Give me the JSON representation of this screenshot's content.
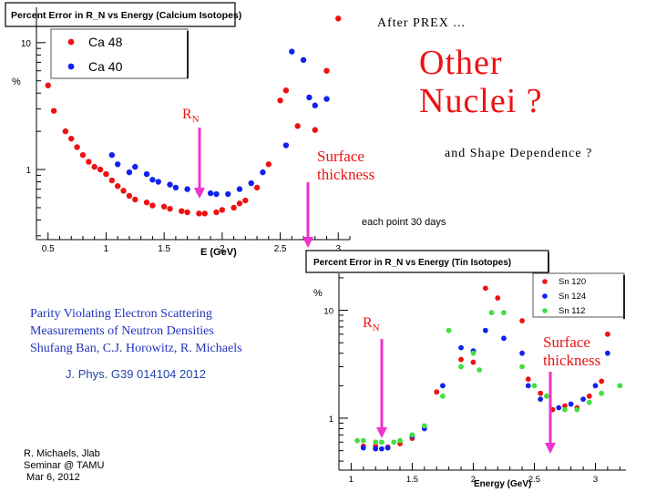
{
  "slide": {
    "after_prex": "After  PREX ...",
    "headline": "Other Nuclei  ?",
    "shape": "and  Shape  Dependence ?",
    "each_point": "each point 30 days",
    "paper_lines": [
      "Parity Violating Electron Scattering",
      "Measurements of Neutron Densities",
      "Shufang Ban,  C.J. Horowitz,  R. Michaels"
    ],
    "journal": "J. Phys. G39  014104  2012",
    "footer_lines": [
      "R. Michaels,  Jlab",
      "Seminar @ TAMU",
      " Mar 6, 2012"
    ],
    "annotations": {
      "rn_base": "R",
      "rn_sub": "N",
      "surface_lines": [
        "Surface",
        "thickness"
      ]
    },
    "colors": {
      "red": "#ee1111",
      "blue": "#1122ee",
      "green": "#44dd44",
      "magenta": "#ee33cc",
      "journal_blue": "#2244aa"
    }
  },
  "chart_data": [
    {
      "type": "scatter",
      "title": "Percent Error in R_N vs Energy (Calcium Isotopes)",
      "xlabel": "E  (GeV)",
      "ylabel": "%",
      "y_scale": "log",
      "xlim": [
        0.4,
        3.1
      ],
      "ylim": [
        0.28,
        19
      ],
      "x_ticks": [
        0.5,
        1,
        1.5,
        2,
        2.5,
        3
      ],
      "x_tick_labels": [
        "0.5",
        "1",
        "1.5",
        "2",
        "2.5",
        "3"
      ],
      "y_ticks": [
        1,
        10
      ],
      "y_tick_labels": [
        "1",
        "10"
      ],
      "legend_position": "top-left",
      "series": [
        {
          "name": "Ca 48",
          "color": "red",
          "points": [
            [
              0.5,
              4.6
            ],
            [
              0.55,
              2.9
            ],
            [
              0.65,
              2.0
            ],
            [
              0.7,
              1.75
            ],
            [
              0.75,
              1.5
            ],
            [
              0.8,
              1.3
            ],
            [
              0.85,
              1.15
            ],
            [
              0.9,
              1.05
            ],
            [
              0.95,
              1.0
            ],
            [
              1.0,
              0.92
            ],
            [
              1.05,
              0.82
            ],
            [
              1.1,
              0.74
            ],
            [
              1.15,
              0.68
            ],
            [
              1.2,
              0.62
            ],
            [
              1.25,
              0.58
            ],
            [
              1.35,
              0.55
            ],
            [
              1.4,
              0.52
            ],
            [
              1.5,
              0.51
            ],
            [
              1.55,
              0.49
            ],
            [
              1.65,
              0.47
            ],
            [
              1.7,
              0.46
            ],
            [
              1.8,
              0.45
            ],
            [
              1.85,
              0.45
            ],
            [
              1.95,
              0.46
            ],
            [
              2.0,
              0.48
            ],
            [
              2.1,
              0.5
            ],
            [
              2.15,
              0.54
            ],
            [
              2.2,
              0.57
            ],
            [
              2.3,
              0.72
            ],
            [
              2.4,
              1.1
            ],
            [
              2.5,
              3.5
            ],
            [
              2.55,
              4.2
            ],
            [
              2.65,
              2.2
            ],
            [
              2.8,
              2.05
            ],
            [
              2.9,
              6.0
            ],
            [
              3.0,
              15.5
            ]
          ]
        },
        {
          "name": "Ca 40",
          "color": "blue",
          "points": [
            [
              1.05,
              1.3
            ],
            [
              1.1,
              1.1
            ],
            [
              1.2,
              0.95
            ],
            [
              1.25,
              1.05
            ],
            [
              1.35,
              0.92
            ],
            [
              1.4,
              0.83
            ],
            [
              1.45,
              0.8
            ],
            [
              1.55,
              0.76
            ],
            [
              1.6,
              0.72
            ],
            [
              1.7,
              0.7
            ],
            [
              1.8,
              0.67
            ],
            [
              1.9,
              0.65
            ],
            [
              1.95,
              0.64
            ],
            [
              2.05,
              0.64
            ],
            [
              2.15,
              0.7
            ],
            [
              2.25,
              0.78
            ],
            [
              2.35,
              0.95
            ],
            [
              2.55,
              1.55
            ],
            [
              2.6,
              8.5
            ],
            [
              2.7,
              7.3
            ],
            [
              2.75,
              3.7
            ],
            [
              2.8,
              3.2
            ],
            [
              2.9,
              3.6
            ]
          ]
        }
      ]
    },
    {
      "type": "scatter",
      "title": "Percent Error in R_N vs Energy (Tin Isotopes)",
      "xlabel": "Energy  (GeV)",
      "ylabel": "%",
      "y_scale": "log",
      "xlim": [
        0.9,
        3.25
      ],
      "ylim": [
        0.33,
        22
      ],
      "x_ticks": [
        1,
        1.5,
        2,
        2.5,
        3
      ],
      "x_tick_labels": [
        "1",
        "1.5",
        "2",
        "2.5",
        "3"
      ],
      "y_ticks": [
        1,
        10
      ],
      "y_tick_labels": [
        "1",
        "10"
      ],
      "legend_position": "top-right",
      "series": [
        {
          "name": "Sn 120",
          "color": "red",
          "points": [
            [
              1.1,
              0.55
            ],
            [
              1.2,
              0.55
            ],
            [
              1.3,
              0.54
            ],
            [
              1.4,
              0.58
            ],
            [
              1.5,
              0.65
            ],
            [
              1.7,
              1.75
            ],
            [
              1.9,
              3.5
            ],
            [
              2.0,
              3.3
            ],
            [
              2.1,
              16
            ],
            [
              2.2,
              13
            ],
            [
              2.4,
              8.0
            ],
            [
              2.45,
              2.3
            ],
            [
              2.55,
              1.7
            ],
            [
              2.65,
              1.2
            ],
            [
              2.75,
              1.3
            ],
            [
              2.85,
              1.25
            ],
            [
              2.95,
              1.6
            ],
            [
              3.05,
              2.2
            ],
            [
              3.1,
              6.0
            ],
            [
              3.2,
              14
            ]
          ]
        },
        {
          "name": "Sn 124",
          "color": "blue",
          "points": [
            [
              1.1,
              0.53
            ],
            [
              1.2,
              0.52
            ],
            [
              1.25,
              0.52
            ],
            [
              1.3,
              0.53
            ],
            [
              1.5,
              0.68
            ],
            [
              1.6,
              0.8
            ],
            [
              1.75,
              2.0
            ],
            [
              1.9,
              4.5
            ],
            [
              2.0,
              4.2
            ],
            [
              2.1,
              6.5
            ],
            [
              2.25,
              5.5
            ],
            [
              2.4,
              4.0
            ],
            [
              2.45,
              2.0
            ],
            [
              2.55,
              1.5
            ],
            [
              2.7,
              1.25
            ],
            [
              2.8,
              1.35
            ],
            [
              2.9,
              1.5
            ],
            [
              3.0,
              2.0
            ],
            [
              3.1,
              4.0
            ],
            [
              3.2,
              9.5
            ]
          ]
        },
        {
          "name": "Sn 112",
          "color": "green",
          "points": [
            [
              1.05,
              0.62
            ],
            [
              1.1,
              0.62
            ],
            [
              1.2,
              0.6
            ],
            [
              1.25,
              0.6
            ],
            [
              1.35,
              0.6
            ],
            [
              1.4,
              0.62
            ],
            [
              1.5,
              0.7
            ],
            [
              1.6,
              0.85
            ],
            [
              1.75,
              1.6
            ],
            [
              1.8,
              6.5
            ],
            [
              1.9,
              3.0
            ],
            [
              2.0,
              4.0
            ],
            [
              2.05,
              2.8
            ],
            [
              2.15,
              9.5
            ],
            [
              2.25,
              9.5
            ],
            [
              2.4,
              3.0
            ],
            [
              2.5,
              2.0
            ],
            [
              2.6,
              1.6
            ],
            [
              2.75,
              1.2
            ],
            [
              2.85,
              1.2
            ],
            [
              2.95,
              1.4
            ],
            [
              3.05,
              1.7
            ],
            [
              3.2,
              2.0
            ]
          ]
        }
      ]
    }
  ]
}
